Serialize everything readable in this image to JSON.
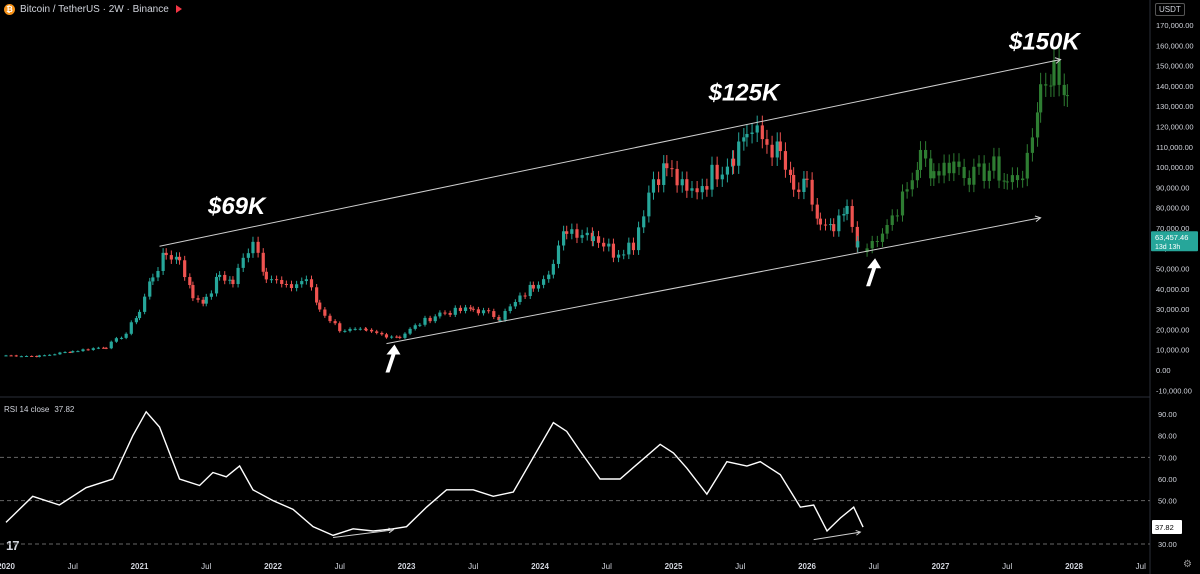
{
  "header": {
    "coin_icon": "bitcoin-icon",
    "title": "Bitcoin / TetherUS · 2W · Binance",
    "flag_icon": "flag-icon"
  },
  "currency": "USDT",
  "price_badge": {
    "price": "63,457.46",
    "countdown": "13d 13h"
  },
  "rsi_header": {
    "label": "RSI 14 close",
    "value": "37.82"
  },
  "rsi_badge": "37.82",
  "annotations": {
    "label_69k": "$69K",
    "label_125k": "$125K",
    "label_150k": "$150K"
  },
  "colors": {
    "up": "#26a69a",
    "down": "#ef5350",
    "projection": "#2e7d32",
    "rsi_line": "#ffffff",
    "channel": "#cfcfcf",
    "badge": "#26a69a"
  },
  "chart_data": [
    {
      "type": "candlestick",
      "title": "Bitcoin / TetherUS · 2W · Binance",
      "ylim": [
        -10000,
        170000
      ],
      "y_ticks": [
        "170,000.00",
        "160,000.00",
        "150,000.00",
        "140,000.00",
        "130,000.00",
        "120,000.00",
        "110,000.00",
        "100,000.00",
        "90,000.00",
        "80,000.00",
        "70,000.00",
        "60,000.00",
        "50,000.00",
        "40,000.00",
        "30,000.00",
        "20,000.00",
        "10,000.00",
        "0.00",
        "-10,000.00"
      ],
      "x_ticks": [
        "2020",
        "Jul",
        "2021",
        "Jul",
        "2022",
        "Jul",
        "2023",
        "Jul",
        "2024",
        "Jul",
        "2025",
        "Jul",
        "2026",
        "Jul",
        "2027",
        "Jul",
        "2028",
        "Jul"
      ],
      "historical_close": [
        [
          2020.0,
          7200
        ],
        [
          2020.25,
          6800
        ],
        [
          2020.5,
          9300
        ],
        [
          2020.75,
          11500
        ],
        [
          2020.9,
          18000
        ],
        [
          2021.0,
          29000
        ],
        [
          2021.1,
          47000
        ],
        [
          2021.2,
          57000
        ],
        [
          2021.3,
          55000
        ],
        [
          2021.4,
          36000
        ],
        [
          2021.5,
          34000
        ],
        [
          2021.6,
          47000
        ],
        [
          2021.7,
          43000
        ],
        [
          2021.85,
          65000
        ],
        [
          2021.95,
          47000
        ],
        [
          2022.1,
          40000
        ],
        [
          2022.25,
          45000
        ],
        [
          2022.35,
          30000
        ],
        [
          2022.5,
          20000
        ],
        [
          2022.7,
          19000
        ],
        [
          2022.85,
          17000
        ],
        [
          2022.95,
          16500
        ],
        [
          2023.1,
          23000
        ],
        [
          2023.25,
          28000
        ],
        [
          2023.5,
          30000
        ],
        [
          2023.7,
          26000
        ],
        [
          2023.85,
          35000
        ],
        [
          2023.95,
          42000
        ],
        [
          2024.1,
          52000
        ],
        [
          2024.2,
          70000
        ],
        [
          2024.4,
          67000
        ],
        [
          2024.55,
          58000
        ],
        [
          2024.7,
          63000
        ],
        [
          2024.85,
          95000
        ],
        [
          2024.95,
          100000
        ],
        [
          2025.1,
          86000
        ],
        [
          2025.25,
          94000
        ],
        [
          2025.45,
          107000
        ],
        [
          2025.55,
          118000
        ],
        [
          2025.7,
          112000
        ],
        [
          2025.8,
          106000
        ],
        [
          2025.9,
          87000
        ],
        [
          2026.0,
          90000
        ],
        [
          2026.1,
          70000
        ],
        [
          2026.2,
          68000
        ],
        [
          2026.3,
          78000
        ],
        [
          2026.38,
          63457
        ]
      ],
      "projection_close": [
        [
          2026.45,
          60000
        ],
        [
          2026.6,
          72000
        ],
        [
          2026.75,
          88000
        ],
        [
          2026.85,
          105000
        ],
        [
          2026.95,
          98000
        ],
        [
          2027.1,
          102000
        ],
        [
          2027.25,
          95000
        ],
        [
          2027.4,
          100000
        ],
        [
          2027.5,
          92000
        ],
        [
          2027.65,
          100000
        ],
        [
          2027.75,
          140000
        ],
        [
          2027.85,
          148000
        ],
        [
          2027.95,
          135000
        ]
      ],
      "channel_upper": {
        "from": [
          2021.15,
          61000
        ],
        "to": [
          2027.9,
          153000
        ]
      },
      "channel_lower": {
        "from": [
          2022.85,
          13000
        ],
        "to": [
          2027.75,
          75000
        ]
      },
      "peak_labels": [
        {
          "text": "$69K",
          "x": 2021.85,
          "y": 69000
        },
        {
          "text": "$125K",
          "x": 2025.6,
          "y": 125000
        },
        {
          "text": "$150K",
          "x": 2027.85,
          "y": 150000
        }
      ],
      "arrows": [
        {
          "x": 2022.85,
          "y": 15500
        },
        {
          "x": 2026.45,
          "y": 58000
        }
      ],
      "current_price": 63457.46
    },
    {
      "type": "line",
      "title": "RSI 14 close",
      "ylim": [
        30,
        90
      ],
      "y_ticks": [
        "90.00",
        "80.00",
        "70.00",
        "60.00",
        "50.00",
        "40.00",
        "30.00"
      ],
      "guide_lines": [
        70,
        50,
        30
      ],
      "x": [
        2020.0,
        2020.2,
        2020.4,
        2020.6,
        2020.8,
        2020.95,
        2021.05,
        2021.15,
        2021.3,
        2021.45,
        2021.55,
        2021.65,
        2021.75,
        2021.85,
        2022.0,
        2022.15,
        2022.3,
        2022.45,
        2022.6,
        2022.75,
        2022.9,
        2023.0,
        2023.15,
        2023.3,
        2023.5,
        2023.65,
        2023.8,
        2023.95,
        2024.1,
        2024.2,
        2024.3,
        2024.45,
        2024.6,
        2024.75,
        2024.9,
        2025.0,
        2025.1,
        2025.25,
        2025.4,
        2025.55,
        2025.65,
        2025.8,
        2025.95,
        2026.05,
        2026.15,
        2026.25,
        2026.35,
        2026.42
      ],
      "values": [
        40,
        52,
        48,
        56,
        60,
        80,
        91,
        84,
        60,
        57,
        63,
        61,
        66,
        55,
        50,
        46,
        38,
        34,
        37,
        36,
        37,
        38,
        47,
        55,
        55,
        52,
        54,
        70,
        86,
        82,
        73,
        60,
        60,
        68,
        76,
        72,
        65,
        53,
        68,
        66,
        68,
        62,
        47,
        48,
        36,
        42,
        47,
        37.82
      ]
    }
  ]
}
